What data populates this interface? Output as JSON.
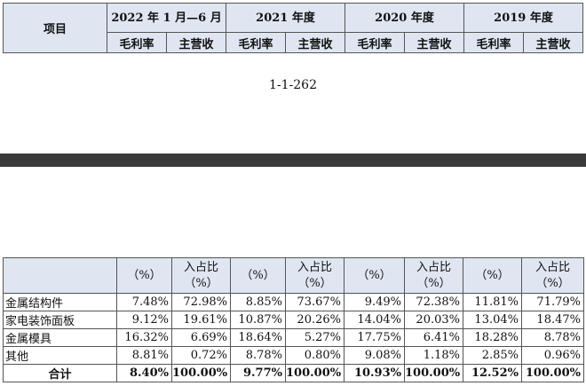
{
  "header": {
    "item_label": "项目",
    "periods": [
      "2022 年 1 月—6 月",
      "2021 年度",
      "2020 年度",
      "2019 年度"
    ],
    "sub_labels": [
      "毛利率",
      "主营收"
    ]
  },
  "page_number": "1-1-262",
  "data_table": {
    "header_cells": [
      "（%）",
      "入占比（%）"
    ],
    "rows": [
      {
        "label": "金属结构件",
        "values": [
          "7.48%",
          "72.98%",
          "8.85%",
          "73.67%",
          "9.49%",
          "72.38%",
          "11.81%",
          "71.79%"
        ]
      },
      {
        "label": "家电装饰面板",
        "values": [
          "9.12%",
          "19.61%",
          "10.87%",
          "20.26%",
          "14.04%",
          "20.03%",
          "13.04%",
          "18.47%"
        ]
      },
      {
        "label": "金属模具",
        "values": [
          "16.32%",
          "6.69%",
          "18.64%",
          "5.27%",
          "17.75%",
          "6.41%",
          "18.28%",
          "8.78%"
        ]
      },
      {
        "label": "其他",
        "values": [
          "8.81%",
          "0.72%",
          "8.78%",
          "0.80%",
          "9.08%",
          "1.18%",
          "2.85%",
          "0.96%"
        ]
      }
    ],
    "total": {
      "label": "合计",
      "values": [
        "8.40%",
        "100.00%",
        "9.77%",
        "100.00%",
        "10.93%",
        "100.00%",
        "12.52%",
        "100.00%"
      ]
    }
  }
}
